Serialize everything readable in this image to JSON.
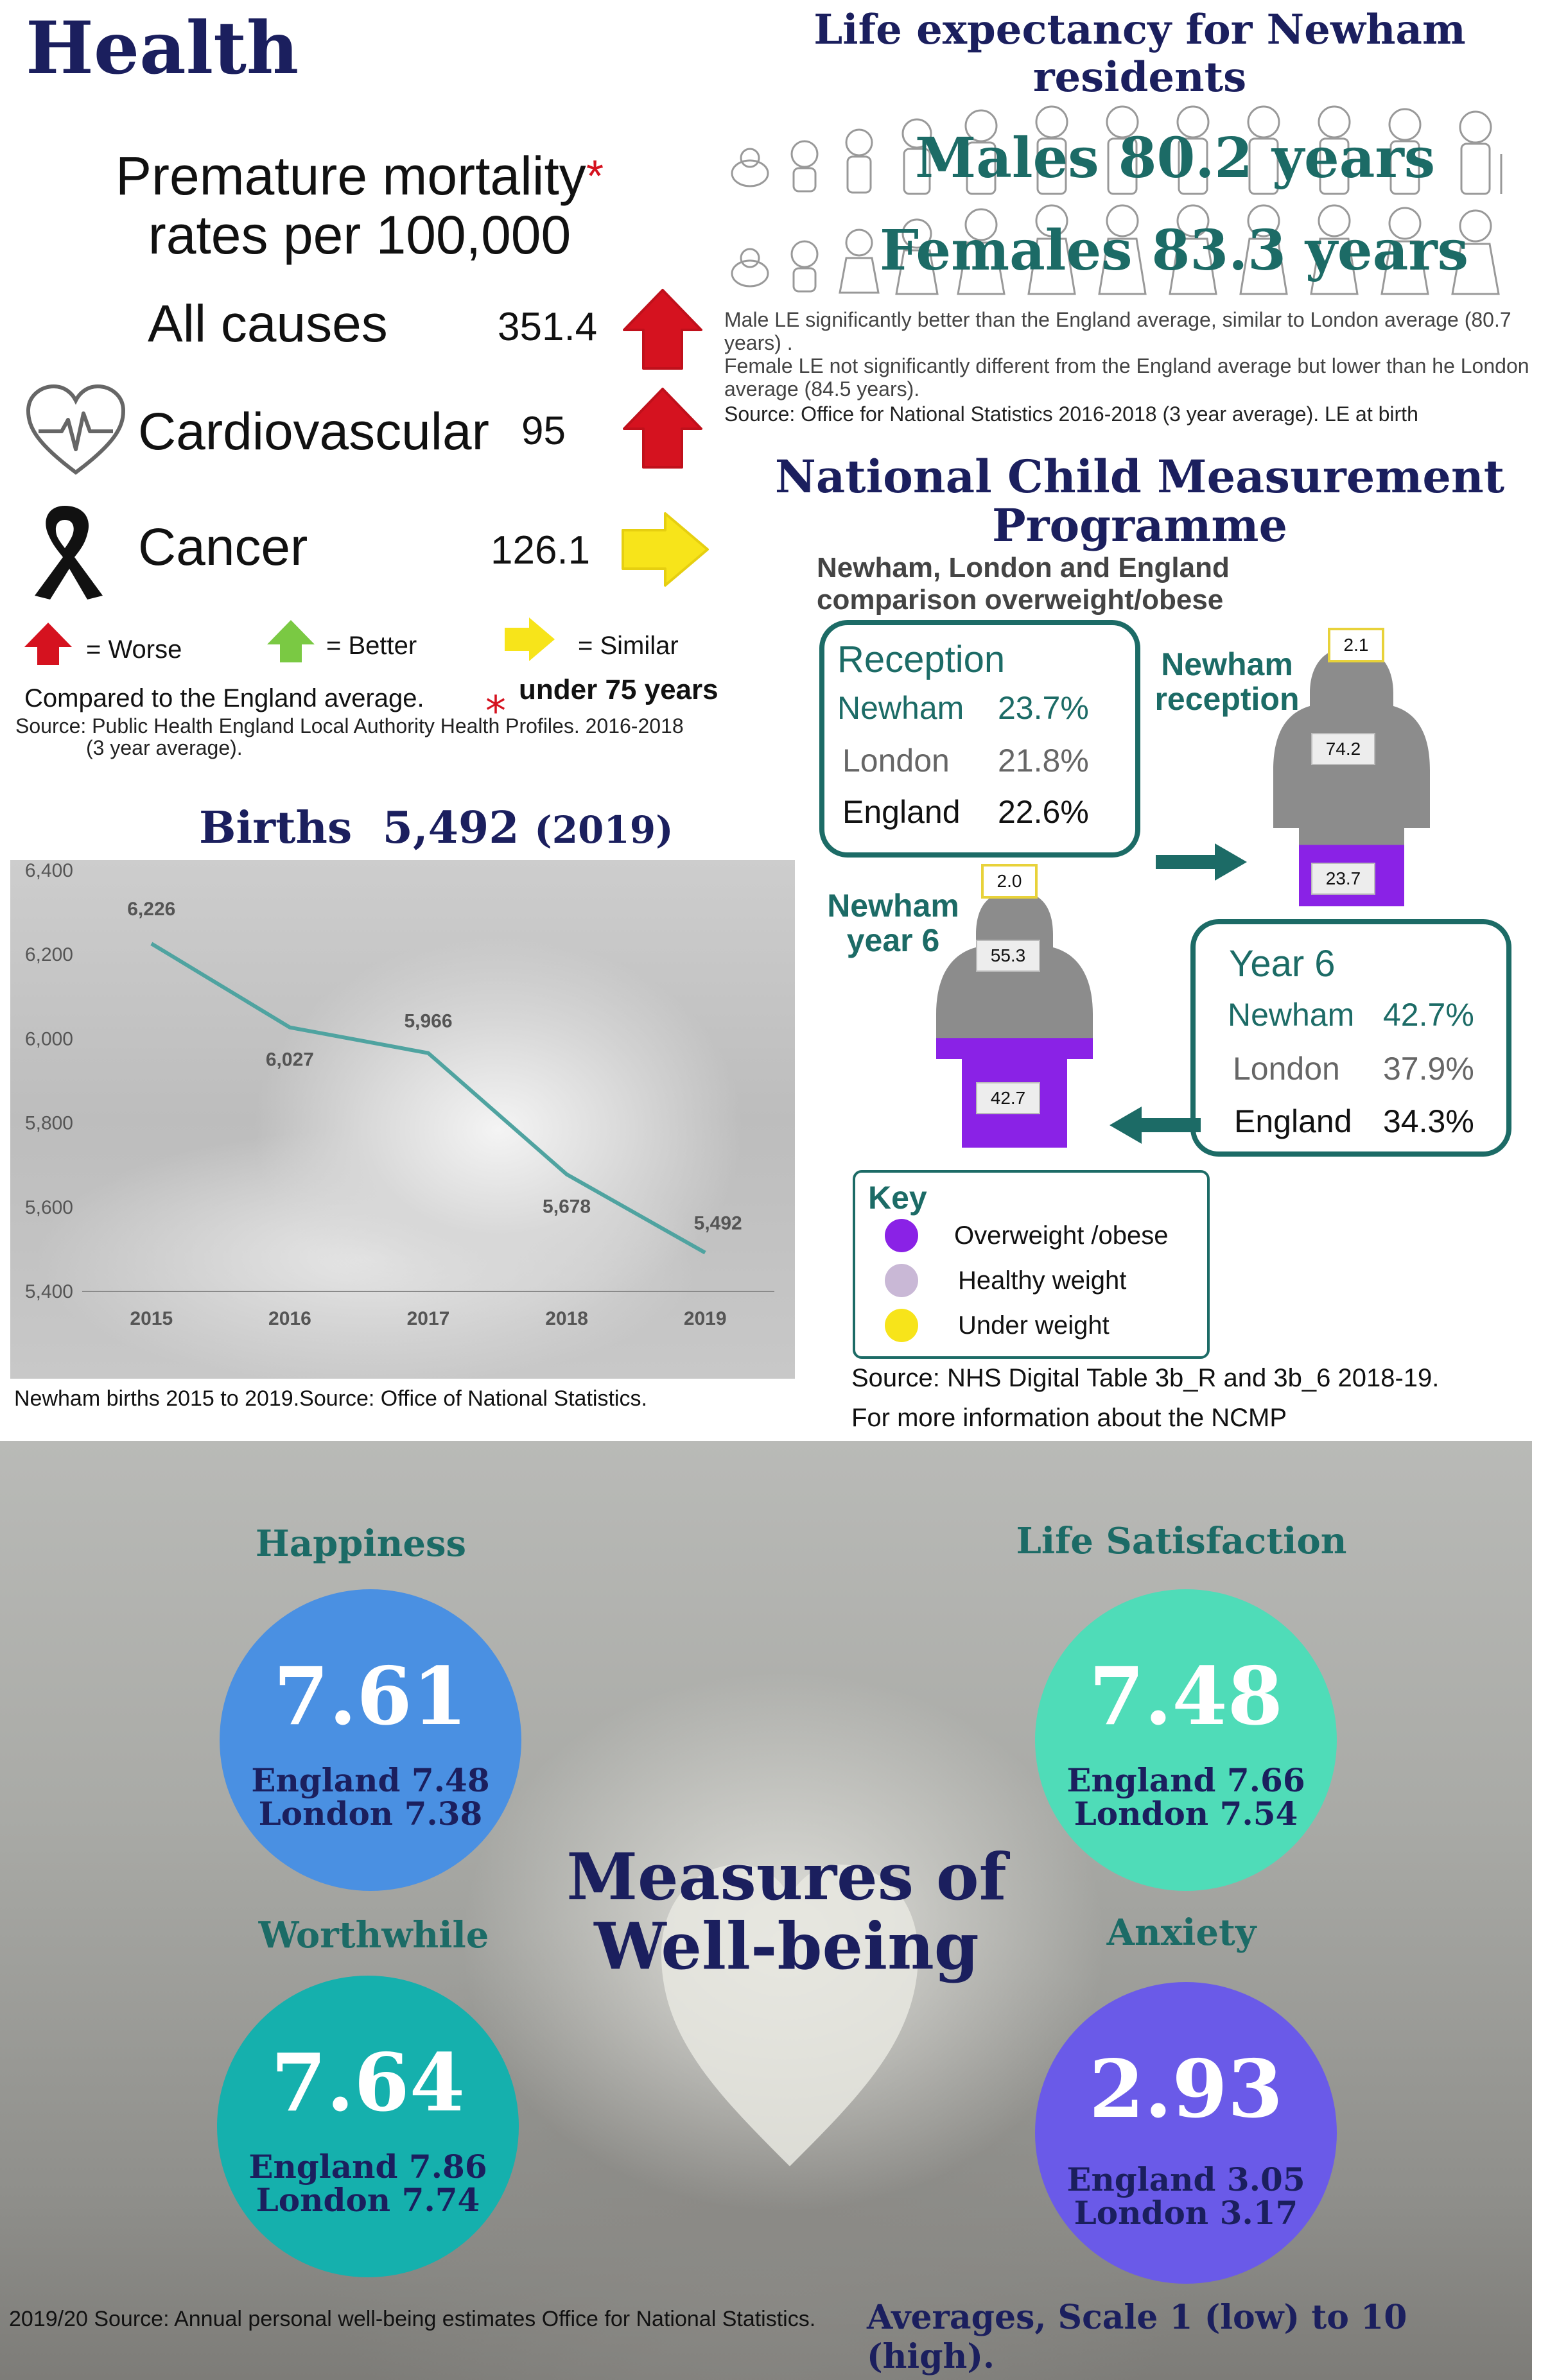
{
  "health": {
    "title": "Health",
    "pm_title_line1": "Premature mortality",
    "pm_title_star": "*",
    "pm_title_line2": "rates per 100,000",
    "rows": [
      {
        "label": "All causes",
        "value": "351.4",
        "indicator": "worse"
      },
      {
        "label": "Cardiovascular",
        "value": "95",
        "indicator": "worse"
      },
      {
        "label": "Cancer",
        "value": "126.1",
        "indicator": "similar"
      }
    ],
    "legend": {
      "worse": "= Worse",
      "better": "= Better",
      "similar": "= Similar"
    },
    "compared": "Compared to the England average.",
    "star": "*",
    "under75": "under 75 years",
    "source_line1": "Source: Public Health England Local Authority Health Profiles. 2016-2018",
    "source_line2": "(3 year average).",
    "colors": {
      "worse": "#d5121f",
      "better": "#7ac943",
      "similar": "#f7e41a"
    }
  },
  "life_expectancy": {
    "title_line1": "Life expectancy for Newham",
    "title_line2": "residents",
    "males": "Males 80.2 years",
    "females": "Females 83.3 years",
    "note_male": "Male LE significantly better than the England average, similar to London average (80.7 years) .",
    "note_female": "Female LE not significantly different from the England average but lower than he London average (84.5 years).",
    "source": "Source: Office for National Statistics 2016-2018 (3 year average). LE at birth"
  },
  "ncmp": {
    "title_line1": "National Child Measurement",
    "title_line2": "Programme",
    "sub_line1": "Newham, London and England",
    "sub_line2": "comparison overweight/obese",
    "reception": {
      "heading": "Reception",
      "rows": [
        {
          "area": "Newham",
          "value": "23.7%"
        },
        {
          "area": "London",
          "value": "21.8%"
        },
        {
          "area": "England",
          "value": "22.6%"
        }
      ]
    },
    "year6": {
      "heading": "Year 6",
      "rows": [
        {
          "area": "Newham",
          "value": "42.7%"
        },
        {
          "area": "London",
          "value": "37.9%"
        },
        {
          "area": "England",
          "value": "34.3%"
        }
      ]
    },
    "reception_figure": {
      "label_line1": "Newham",
      "label_line2": "reception",
      "under": "2.1",
      "healthy": "74.2",
      "over": "23.7",
      "over_fraction": 0.237
    },
    "year6_figure": {
      "label_line1": "Newham",
      "label_line2": "year 6",
      "under": "2.0",
      "healthy": "55.3",
      "over": "42.7",
      "over_fraction": 0.427
    },
    "key": {
      "title": "Key",
      "items": [
        {
          "label": "Overweight /obese",
          "color": "#8a22e6"
        },
        {
          "label": "Healthy weight",
          "color": "#c9b8d6"
        },
        {
          "label": "Under  weight",
          "color": "#f7e41a"
        }
      ]
    },
    "source_line1": "Source: NHS Digital Table 3b_R and 3b_6 2018-19.",
    "source_line2": "For more information about the NCMP"
  },
  "births": {
    "title_prefix": "Births",
    "title_value": "5,492",
    "title_year": "(2019)",
    "source": "Newham births 2015 to 2019.Source: Office  of National Statistics."
  },
  "chart_data": {
    "type": "line",
    "x": [
      "2015",
      "2016",
      "2017",
      "2018",
      "2019"
    ],
    "series": [
      {
        "values": [
          6226,
          6027,
          5966,
          5678,
          5492
        ]
      }
    ],
    "data_labels": [
      "6,226",
      "6,027",
      "5,966",
      "5,678",
      "5,492"
    ],
    "yticks": [
      "5,400",
      "5,600",
      "5,800",
      "6,000",
      "6,200",
      "6,400"
    ],
    "ylim": [
      5400,
      6400
    ],
    "grid": false,
    "line_color": "#4fa3a0"
  },
  "wellbeing": {
    "title_line1": "Measures of",
    "title_line2": "Well-being",
    "cards": [
      {
        "heading": "Happiness",
        "value": "7.61",
        "england": "England 7.48",
        "london": "London   7.38",
        "color": "#4a90e2"
      },
      {
        "heading": "Life Satisfaction",
        "value": "7.48",
        "england": "England 7.66",
        "london": "London   7.54",
        "color": "#4fdcb8"
      },
      {
        "heading": "Worthwhile",
        "value": "7.64",
        "england": "England 7.86",
        "london": "London   7.74",
        "color": "#15b0ad"
      },
      {
        "heading": "Anxiety",
        "value": "2.93",
        "england": "England 3.05",
        "london": "London  3.17",
        "color": "#6a5ae8"
      }
    ],
    "source": "2019/20 Source: Annual personal well-being estimates Office for National Statistics.",
    "scale_note": "Averages, Scale 1 (low) to 10 (high)."
  }
}
